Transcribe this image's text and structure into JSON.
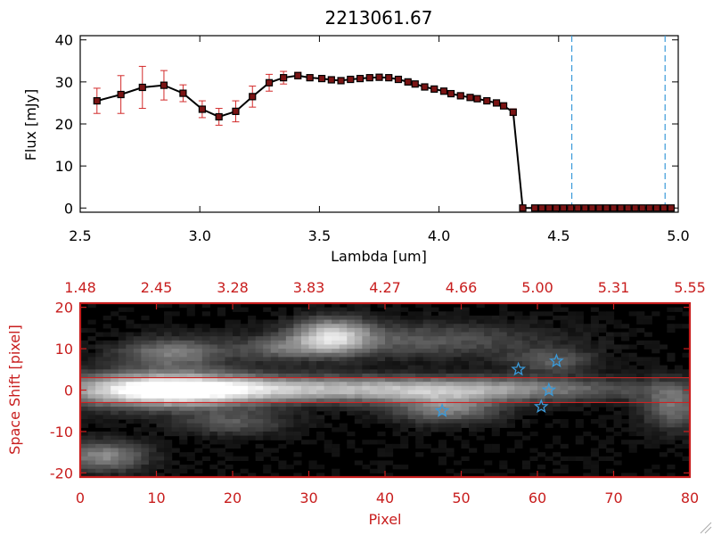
{
  "chart_data": [
    {
      "type": "line",
      "title": "2213061.67",
      "xlabel": "Lambda [um]",
      "ylabel": "Flux [mJy]",
      "xlim": [
        2.5,
        5.0
      ],
      "ylim": [
        -1,
        41
      ],
      "x_ticks": [
        "2.5",
        "3.0",
        "3.5",
        "4.0",
        "4.5",
        "5.0"
      ],
      "y_ticks": [
        "0",
        "10",
        "20",
        "30",
        "40"
      ],
      "x_tick_values": [
        2.5,
        3.0,
        3.5,
        4.0,
        4.5,
        5.0
      ],
      "y_tick_values": [
        0,
        10,
        20,
        30,
        40
      ],
      "series": [
        {
          "name": "flux",
          "x": [
            2.57,
            2.67,
            2.76,
            2.85,
            2.93,
            3.01,
            3.08,
            3.15,
            3.22,
            3.29,
            3.35,
            3.41,
            3.46,
            3.51,
            3.55,
            3.59,
            3.63,
            3.67,
            3.71,
            3.75,
            3.79,
            3.83,
            3.87,
            3.9,
            3.94,
            3.98,
            4.02,
            4.05,
            4.09,
            4.13,
            4.16,
            4.2,
            4.24,
            4.27,
            4.31,
            4.35,
            4.4,
            4.43,
            4.46,
            4.49,
            4.52,
            4.55,
            4.58,
            4.61,
            4.64,
            4.67,
            4.7,
            4.73,
            4.76,
            4.79,
            4.82,
            4.85,
            4.88,
            4.91,
            4.94,
            4.97
          ],
          "y": [
            25.5,
            27.0,
            28.7,
            29.2,
            27.3,
            23.5,
            21.7,
            23.0,
            26.5,
            29.8,
            31.0,
            31.5,
            31.0,
            30.8,
            30.5,
            30.3,
            30.6,
            30.8,
            31.0,
            31.1,
            31.0,
            30.6,
            30.0,
            29.5,
            28.8,
            28.3,
            27.8,
            27.2,
            26.7,
            26.3,
            26.0,
            25.5,
            25.0,
            24.3,
            22.8,
            0,
            0,
            0,
            0,
            0,
            0,
            0,
            0,
            0,
            0,
            0,
            0,
            0,
            0,
            0,
            0,
            0,
            0,
            0,
            0,
            0
          ],
          "yerr": [
            3.0,
            4.5,
            5.0,
            3.5,
            2.0,
            2.0,
            2.0,
            2.5,
            2.5,
            2.0,
            1.5,
            0.8,
            0.6,
            0.5,
            0.5,
            0.5,
            0.5,
            0.5,
            0.5,
            0.5,
            0.5,
            0.5,
            0.5,
            0.5,
            0.5,
            0.5,
            0.5,
            0.5,
            0.5,
            0.5,
            0.5,
            0.5,
            0.5,
            0.6,
            0.8,
            0,
            0,
            0,
            0,
            0,
            0,
            0,
            0,
            0,
            0,
            0,
            0,
            0,
            0,
            0,
            0,
            0,
            0,
            0,
            0,
            0
          ]
        }
      ],
      "vertical_lines": [
        {
          "x": 4.555,
          "style": "dashed",
          "color": "#3a9ad9"
        },
        {
          "x": 4.945,
          "style": "dashed",
          "color": "#3a9ad9"
        }
      ],
      "horizontal_lines": [
        {
          "y": 0,
          "style": "dotted",
          "color": "#cc2222"
        }
      ]
    },
    {
      "type": "heatmap",
      "xlabel": "Pixel",
      "ylabel": "Space Shift [pixel]",
      "xlim": [
        0,
        80
      ],
      "ylim": [
        -21,
        21
      ],
      "x_ticks": [
        "0",
        "10",
        "20",
        "30",
        "40",
        "50",
        "60",
        "70",
        "80"
      ],
      "x_tick_values": [
        0,
        10,
        20,
        30,
        40,
        50,
        60,
        70,
        80
      ],
      "y_ticks": [
        "20",
        "10",
        "0",
        "-10",
        "-20"
      ],
      "y_tick_values": [
        20,
        10,
        0,
        -10,
        -20
      ],
      "top_axis_ticks": [
        "1.48",
        "2.45",
        "3.28",
        "3.83",
        "4.27",
        "4.66",
        "5.00",
        "5.31",
        "5.55"
      ],
      "horizontal_lines": [
        {
          "y": 3,
          "color": "#cc2222"
        },
        {
          "y": -3,
          "color": "#cc2222"
        }
      ],
      "star_markers": [
        {
          "x": 47.5,
          "y": -5
        },
        {
          "x": 57.5,
          "y": 5
        },
        {
          "x": 62.5,
          "y": 7
        },
        {
          "x": 61.5,
          "y": 0
        },
        {
          "x": 60.5,
          "y": -4
        }
      ],
      "blobs": [
        {
          "x": 11,
          "y": 0,
          "sx": 9,
          "sy": 3,
          "v": 0.95
        },
        {
          "x": 32,
          "y": 0.2,
          "sx": 18,
          "sy": 2.2,
          "v": 0.55
        },
        {
          "x": 55,
          "y": 0.2,
          "sx": 15,
          "sy": 2,
          "v": 0.35
        },
        {
          "x": 48,
          "y": -4.5,
          "sx": 5,
          "sy": 2.5,
          "v": 0.45
        },
        {
          "x": 33,
          "y": 13,
          "sx": 3.5,
          "sy": 3,
          "v": 0.7
        },
        {
          "x": 12,
          "y": 9,
          "sx": 5,
          "sy": 2.5,
          "v": 0.45
        },
        {
          "x": 45,
          "y": 12,
          "sx": 12,
          "sy": 3,
          "v": 0.3
        },
        {
          "x": 3,
          "y": -16,
          "sx": 4,
          "sy": 2.5,
          "v": 0.5
        },
        {
          "x": 78,
          "y": -4,
          "sx": 3,
          "sy": 4,
          "v": 0.4
        },
        {
          "x": 20,
          "y": -8,
          "sx": 5,
          "sy": 2,
          "v": 0.3
        },
        {
          "x": 26,
          "y": 10,
          "sx": 4,
          "sy": 2,
          "v": 0.3
        },
        {
          "x": 62,
          "y": 7,
          "sx": 4,
          "sy": 2,
          "v": 0.3
        }
      ]
    }
  ],
  "colors": {
    "red_axis": "#c81e1e",
    "error_bar": "#d22a2a",
    "marker_fill": "#7a1414",
    "dashed_line": "#3a9ad9",
    "star": "#3a9ad9"
  }
}
